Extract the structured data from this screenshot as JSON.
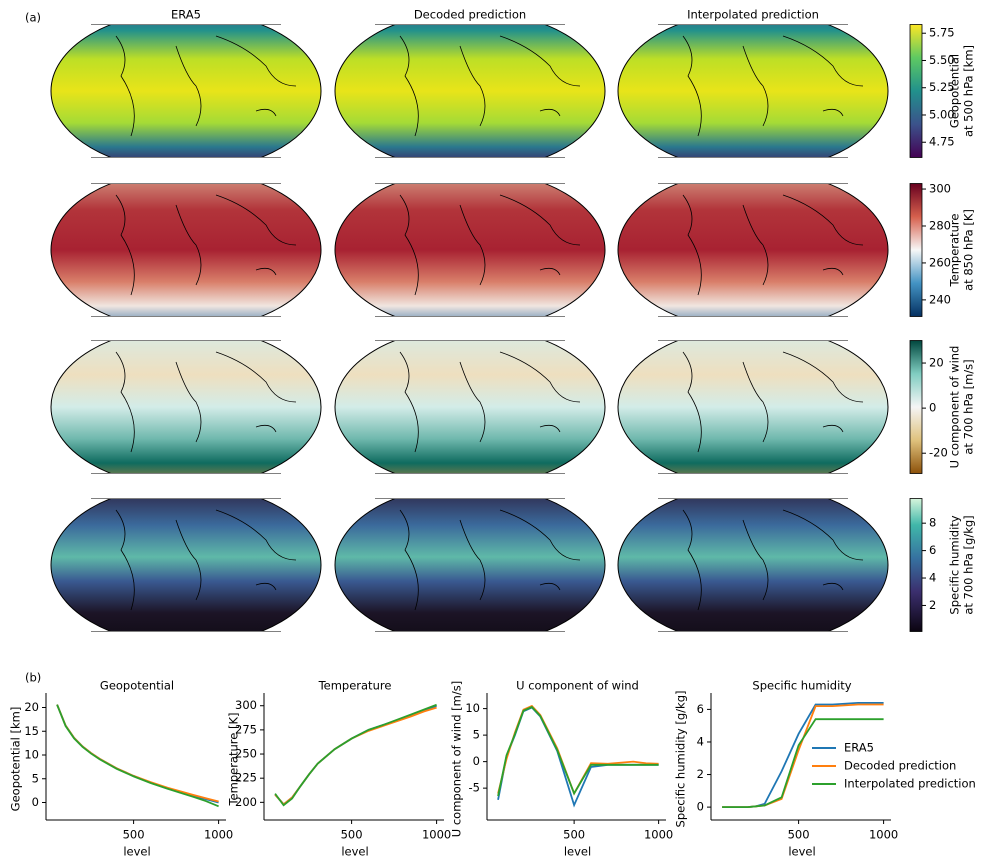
{
  "panel_a": {
    "label": "(a)",
    "columns": [
      "ERA5",
      "Decoded prediction",
      "Interpolated prediction"
    ],
    "colorbars": [
      {
        "label_lines": [
          "Geopotential",
          "at 500 hPa [km]"
        ],
        "lim": [
          4.61,
          5.83
        ],
        "ticks": [
          4.75,
          {
            "value": 5.0,
            "label": "5.00"
          },
          5.25,
          {
            "value": 5.5,
            "label": "5.50"
          },
          5.75
        ]
      },
      {
        "label_lines": [
          "Temperature",
          "at 850 hPa [K]"
        ],
        "lim": [
          231,
          303
        ],
        "ticks": [
          240,
          260,
          280,
          300
        ]
      },
      {
        "label_lines": [
          "U component of wind",
          "at 700 hPa [m/s]"
        ],
        "lim": [
          -29,
          30
        ],
        "ticks": [
          -20,
          0,
          20
        ]
      },
      {
        "label_lines": [
          "Specific humidity",
          "at 700 hPa [g/kg]"
        ],
        "lim": [
          0.1,
          9.8
        ],
        "ticks": [
          2,
          4,
          6,
          8
        ]
      }
    ]
  },
  "panel_b_label": "(b)",
  "chart_data": [
    {
      "type": "line",
      "title": "Geopotential",
      "xlabel": "level",
      "ylabel": "Geopotential [km]",
      "x": [
        50,
        100,
        150,
        200,
        250,
        300,
        400,
        500,
        600,
        700,
        850,
        925,
        1000
      ],
      "xlim": [
        20,
        1020
      ],
      "xticks": [
        500,
        1000
      ],
      "ylim": [
        -2,
        22
      ],
      "yticks": [
        0,
        5,
        10,
        15,
        20
      ],
      "series": [
        {
          "color": "#1f77b4",
          "values": [
            20.6,
            16.2,
            13.6,
            11.8,
            10.4,
            9.2,
            7.2,
            5.6,
            4.2,
            3.0,
            1.4,
            0.7,
            0.0
          ]
        },
        {
          "color": "#ff7f0e",
          "values": [
            20.6,
            16.2,
            13.6,
            11.8,
            10.4,
            9.2,
            7.2,
            5.6,
            4.3,
            3.1,
            1.6,
            0.9,
            0.2
          ]
        },
        {
          "color": "#2ca02c",
          "values": [
            20.6,
            16.1,
            13.5,
            11.7,
            10.3,
            9.1,
            7.1,
            5.5,
            4.1,
            2.9,
            1.2,
            0.3,
            -0.8
          ]
        }
      ]
    },
    {
      "type": "line",
      "title": "Temperature",
      "xlabel": "level",
      "ylabel": "Temperature [K]",
      "x": [
        50,
        100,
        150,
        200,
        250,
        300,
        400,
        500,
        600,
        700,
        850,
        925,
        1000
      ],
      "xlim": [
        20,
        1020
      ],
      "xticks": [
        500,
        1000
      ],
      "ylim": [
        190,
        308
      ],
      "yticks": [
        200,
        225,
        250,
        275,
        300
      ],
      "series": [
        {
          "color": "#1f77b4",
          "values": [
            208,
            198,
            205,
            217,
            229,
            240,
            255,
            266,
            275,
            281,
            290,
            295,
            300
          ]
        },
        {
          "color": "#ff7f0e",
          "values": [
            208,
            198,
            205,
            217,
            229,
            240,
            255,
            266,
            274,
            280,
            289,
            294,
            298
          ]
        },
        {
          "color": "#2ca02c",
          "values": [
            209,
            197,
            204,
            217,
            229,
            240,
            255,
            266,
            275,
            281,
            291,
            296,
            301
          ]
        }
      ]
    },
    {
      "type": "line",
      "title": "U component of wind",
      "xlabel": "level",
      "ylabel": "U component of wind [m/s]",
      "x": [
        50,
        100,
        150,
        200,
        250,
        300,
        400,
        500,
        600,
        700,
        850,
        925,
        1000
      ],
      "xlim": [
        20,
        1020
      ],
      "xticks": [
        500,
        1000
      ],
      "ylim": [
        -9.5,
        12
      ],
      "yticks": [
        -5,
        0,
        5,
        10
      ],
      "series": [
        {
          "color": "#1f77b4",
          "values": [
            -7.2,
            1.0,
            5.0,
            9.5,
            10.2,
            8.5,
            2.0,
            -8.2,
            -1.0,
            -0.6,
            -0.6,
            -0.6,
            -0.6
          ]
        },
        {
          "color": "#ff7f0e",
          "values": [
            -6.0,
            0.5,
            5.5,
            9.8,
            10.5,
            8.8,
            2.5,
            -6.0,
            -0.3,
            -0.4,
            0.0,
            -0.3,
            -0.4
          ]
        },
        {
          "color": "#2ca02c",
          "values": [
            -6.5,
            1.2,
            5.2,
            9.6,
            10.3,
            8.6,
            2.2,
            -6.0,
            -0.6,
            -0.6,
            -0.6,
            -0.6,
            -0.6
          ]
        }
      ]
    },
    {
      "type": "line",
      "title": "Specific humidity",
      "xlabel": "level",
      "ylabel": "Specific humidity [g/kg]",
      "x": [
        50,
        100,
        150,
        200,
        250,
        300,
        400,
        500,
        600,
        700,
        850,
        925,
        1000
      ],
      "xlim": [
        20,
        1020
      ],
      "xticks": [
        500,
        1000
      ],
      "ylim": [
        -0.3,
        6.7
      ],
      "yticks": [
        0,
        2,
        4,
        6
      ],
      "legend": "right",
      "series": [
        {
          "name": "ERA5",
          "color": "#1f77b4",
          "values": [
            0,
            0,
            0,
            0,
            0.05,
            0.2,
            2.2,
            4.5,
            6.3,
            6.3,
            6.4,
            6.4,
            6.4
          ]
        },
        {
          "name": "Decoded prediction",
          "color": "#ff7f0e",
          "values": [
            0,
            0,
            0,
            0,
            0.05,
            0.1,
            0.5,
            3.5,
            6.2,
            6.2,
            6.3,
            6.3,
            6.3
          ]
        },
        {
          "name": "Interpolated prediction",
          "color": "#2ca02c",
          "values": [
            0,
            0,
            0,
            0,
            0.05,
            0.1,
            0.6,
            3.8,
            5.4,
            5.4,
            5.4,
            5.4,
            5.4
          ]
        }
      ]
    }
  ]
}
